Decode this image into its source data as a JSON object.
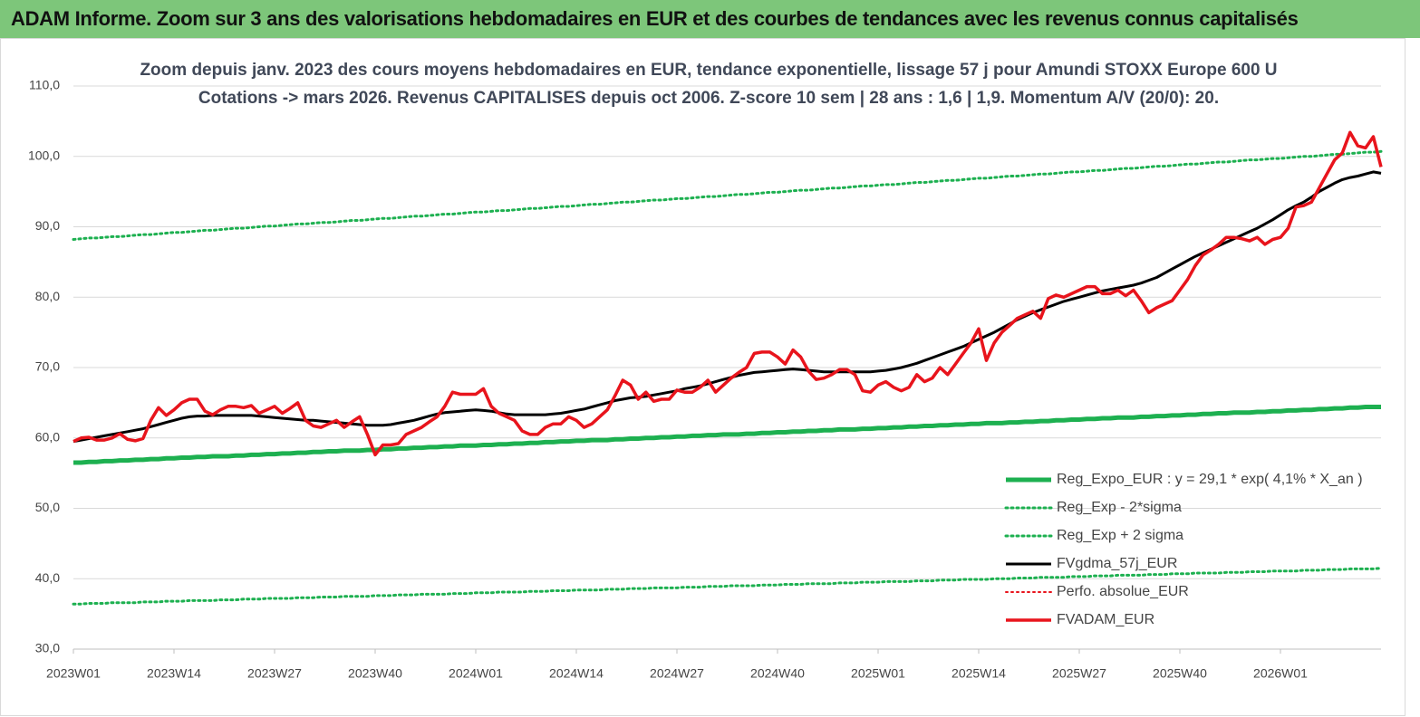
{
  "header": {
    "title": "ADAM Informe. Zoom sur 3 ans des valorisations hebdomadaires en EUR et des courbes de tendances avec les revenus connus capitalisés"
  },
  "chart_data": {
    "type": "line",
    "title": "Zoom depuis janv. 2023 des cours moyens hebdomadaires en EUR, tendance exponentielle, lissage 57 j pour Amundi STOXX Europe 600 U",
    "subtitle": "Cotations -> mars 2026. Revenus CAPITALISES depuis oct 2006. Z-score 10 sem | 28 ans : 1,6 | 1,9. Momentum A/V (20/0): 20.",
    "categories": [
      "2023W01",
      null,
      null,
      null,
      null,
      null,
      null,
      null,
      null,
      null,
      null,
      null,
      null,
      "2023W14",
      null,
      null,
      null,
      null,
      null,
      null,
      null,
      null,
      null,
      null,
      null,
      null,
      "2023W27",
      null,
      null,
      null,
      null,
      null,
      null,
      null,
      null,
      null,
      null,
      null,
      null,
      "2023W40",
      null,
      null,
      null,
      null,
      null,
      null,
      null,
      null,
      null,
      null,
      null,
      null,
      "2024W01",
      null,
      null,
      null,
      null,
      null,
      null,
      null,
      null,
      null,
      null,
      null,
      null,
      "2024W14",
      null,
      null,
      null,
      null,
      null,
      null,
      null,
      null,
      null,
      null,
      null,
      null,
      "2024W27",
      null,
      null,
      null,
      null,
      null,
      null,
      null,
      null,
      null,
      null,
      null,
      null,
      "2024W40",
      null,
      null,
      null,
      null,
      null,
      null,
      null,
      null,
      null,
      null,
      null,
      null,
      "2025W01",
      null,
      null,
      null,
      null,
      null,
      null,
      null,
      null,
      null,
      null,
      null,
      null,
      "2025W14",
      null,
      null,
      null,
      null,
      null,
      null,
      null,
      null,
      null,
      null,
      null,
      null,
      "2025W27",
      null,
      null,
      null,
      null,
      null,
      null,
      null,
      null,
      null,
      null,
      null,
      null,
      "2025W40",
      null,
      null,
      null,
      null,
      null,
      null,
      null,
      null,
      null,
      null,
      null,
      null,
      "2026W01",
      null,
      null,
      null,
      null,
      null,
      null,
      null,
      null,
      null,
      null,
      null,
      null,
      null
    ],
    "ylim": [
      30,
      110
    ],
    "yticks": [
      {
        "value": 30,
        "label": "30,0"
      },
      {
        "value": 40,
        "label": "40,0"
      },
      {
        "value": 50,
        "label": "50,0"
      },
      {
        "value": 60,
        "label": "60,0"
      },
      {
        "value": 70,
        "label": "70,0"
      },
      {
        "value": 80,
        "label": "80,0"
      },
      {
        "value": 90,
        "label": "90,0"
      },
      {
        "value": 100,
        "label": "100,0"
      },
      {
        "value": 110,
        "label": "110,0"
      }
    ],
    "grid": true,
    "legend": "lower right",
    "series": [
      {
        "name": "Reg_Expo_EUR : y = 29,1 * exp( 4,1% *  X_an )",
        "color": "#1db050",
        "style": "solid",
        "width": 5,
        "values": [
          56.5,
          56.5,
          56.6,
          56.6,
          56.7,
          56.7,
          56.8,
          56.8,
          56.9,
          56.9,
          57.0,
          57.0,
          57.1,
          57.1,
          57.2,
          57.2,
          57.3,
          57.3,
          57.4,
          57.4,
          57.4,
          57.5,
          57.5,
          57.6,
          57.6,
          57.7,
          57.7,
          57.8,
          57.8,
          57.9,
          57.9,
          58.0,
          58.0,
          58.1,
          58.1,
          58.2,
          58.2,
          58.2,
          58.3,
          58.3,
          58.4,
          58.4,
          58.5,
          58.5,
          58.6,
          58.6,
          58.7,
          58.7,
          58.8,
          58.8,
          58.9,
          58.9,
          58.9,
          59.0,
          59.0,
          59.1,
          59.1,
          59.2,
          59.2,
          59.3,
          59.3,
          59.4,
          59.4,
          59.5,
          59.5,
          59.6,
          59.6,
          59.7,
          59.7,
          59.7,
          59.8,
          59.8,
          59.9,
          59.9,
          60.0,
          60.0,
          60.1,
          60.1,
          60.2,
          60.2,
          60.3,
          60.3,
          60.4,
          60.4,
          60.5,
          60.5,
          60.5,
          60.6,
          60.6,
          60.7,
          60.7,
          60.8,
          60.8,
          60.9,
          60.9,
          61.0,
          61.0,
          61.1,
          61.1,
          61.2,
          61.2,
          61.2,
          61.3,
          61.3,
          61.4,
          61.4,
          61.5,
          61.5,
          61.6,
          61.6,
          61.7,
          61.7,
          61.8,
          61.8,
          61.9,
          61.9,
          62.0,
          62.0,
          62.1,
          62.1,
          62.1,
          62.2,
          62.2,
          62.3,
          62.3,
          62.4,
          62.4,
          62.5,
          62.5,
          62.6,
          62.6,
          62.7,
          62.7,
          62.8,
          62.8,
          62.9,
          62.9,
          62.9,
          63.0,
          63.0,
          63.1,
          63.1,
          63.2,
          63.2,
          63.3,
          63.3,
          63.4,
          63.4,
          63.5,
          63.5,
          63.6,
          63.6,
          63.6,
          63.7,
          63.7,
          63.8,
          63.8,
          63.9,
          63.9,
          64.0,
          64.0,
          64.1,
          64.1,
          64.2,
          64.2,
          64.3,
          64.3,
          64.4,
          64.4,
          64.4
        ]
      },
      {
        "name": "Reg_Exp - 2*sigma",
        "color": "#1db050",
        "style": "dotted",
        "width": 3,
        "values": [
          36.4,
          36.4,
          36.5,
          36.5,
          36.5,
          36.6,
          36.6,
          36.6,
          36.6,
          36.7,
          36.7,
          36.7,
          36.8,
          36.8,
          36.8,
          36.9,
          36.9,
          36.9,
          36.9,
          37.0,
          37.0,
          37.0,
          37.1,
          37.1,
          37.1,
          37.2,
          37.2,
          37.2,
          37.2,
          37.3,
          37.3,
          37.3,
          37.4,
          37.4,
          37.4,
          37.5,
          37.5,
          37.5,
          37.5,
          37.6,
          37.6,
          37.6,
          37.7,
          37.7,
          37.7,
          37.8,
          37.8,
          37.8,
          37.8,
          37.9,
          37.9,
          37.9,
          38.0,
          38.0,
          38.0,
          38.1,
          38.1,
          38.1,
          38.1,
          38.2,
          38.2,
          38.2,
          38.3,
          38.3,
          38.3,
          38.4,
          38.4,
          38.4,
          38.4,
          38.5,
          38.5,
          38.5,
          38.6,
          38.6,
          38.6,
          38.7,
          38.7,
          38.7,
          38.7,
          38.8,
          38.8,
          38.8,
          38.9,
          38.9,
          38.9,
          39.0,
          39.0,
          39.0,
          39.0,
          39.1,
          39.1,
          39.1,
          39.2,
          39.2,
          39.2,
          39.3,
          39.3,
          39.3,
          39.3,
          39.4,
          39.4,
          39.4,
          39.5,
          39.5,
          39.5,
          39.6,
          39.6,
          39.6,
          39.6,
          39.7,
          39.7,
          39.7,
          39.8,
          39.8,
          39.8,
          39.9,
          39.9,
          39.9,
          39.9,
          40.0,
          40.0,
          40.0,
          40.1,
          40.1,
          40.1,
          40.2,
          40.2,
          40.2,
          40.2,
          40.3,
          40.3,
          40.3,
          40.4,
          40.4,
          40.4,
          40.5,
          40.5,
          40.5,
          40.5,
          40.6,
          40.6,
          40.6,
          40.7,
          40.7,
          40.7,
          40.8,
          40.8,
          40.8,
          40.8,
          40.9,
          40.9,
          40.9,
          41.0,
          41.0,
          41.0,
          41.1,
          41.1,
          41.1,
          41.1,
          41.2,
          41.2,
          41.2,
          41.3,
          41.3,
          41.3,
          41.4,
          41.4,
          41.4,
          41.4,
          41.5
        ]
      },
      {
        "name": "Reg_Exp + 2 sigma",
        "color": "#1db050",
        "style": "dotted",
        "width": 3,
        "values": [
          88.2,
          88.3,
          88.4,
          88.4,
          88.5,
          88.6,
          88.6,
          88.7,
          88.8,
          88.9,
          88.9,
          89.0,
          89.1,
          89.2,
          89.2,
          89.3,
          89.4,
          89.5,
          89.5,
          89.6,
          89.7,
          89.8,
          89.8,
          89.9,
          90.0,
          90.1,
          90.1,
          90.2,
          90.3,
          90.4,
          90.4,
          90.5,
          90.6,
          90.6,
          90.7,
          90.8,
          90.9,
          90.9,
          91.0,
          91.1,
          91.2,
          91.2,
          91.3,
          91.4,
          91.5,
          91.5,
          91.6,
          91.7,
          91.8,
          91.8,
          91.9,
          92.0,
          92.1,
          92.1,
          92.2,
          92.3,
          92.3,
          92.4,
          92.5,
          92.6,
          92.6,
          92.7,
          92.8,
          92.9,
          92.9,
          93.0,
          93.1,
          93.2,
          93.2,
          93.3,
          93.4,
          93.5,
          93.5,
          93.6,
          93.7,
          93.8,
          93.8,
          93.9,
          94.0,
          94.0,
          94.1,
          94.2,
          94.3,
          94.3,
          94.4,
          94.5,
          94.6,
          94.6,
          94.7,
          94.8,
          94.9,
          94.9,
          95.0,
          95.1,
          95.2,
          95.2,
          95.3,
          95.4,
          95.5,
          95.5,
          95.6,
          95.7,
          95.8,
          95.8,
          95.9,
          96.0,
          96.0,
          96.1,
          96.2,
          96.3,
          96.3,
          96.4,
          96.5,
          96.6,
          96.6,
          96.7,
          96.8,
          96.9,
          96.9,
          97.0,
          97.1,
          97.2,
          97.2,
          97.3,
          97.4,
          97.5,
          97.5,
          97.6,
          97.7,
          97.8,
          97.8,
          97.9,
          98.0,
          98.0,
          98.1,
          98.2,
          98.3,
          98.3,
          98.4,
          98.5,
          98.6,
          98.6,
          98.7,
          98.8,
          98.9,
          98.9,
          99.0,
          99.1,
          99.2,
          99.2,
          99.3,
          99.4,
          99.5,
          99.5,
          99.6,
          99.7,
          99.7,
          99.8,
          99.9,
          100.0,
          100.0,
          100.1,
          100.2,
          100.3,
          100.3,
          100.4,
          100.5,
          100.6,
          100.6,
          100.7
        ]
      },
      {
        "name": "FVgdma_57j_EUR",
        "color": "#000000",
        "style": "solid",
        "width": 3,
        "values": [
          59.5,
          59.7,
          59.9,
          60.1,
          60.3,
          60.5,
          60.7,
          60.9,
          61.1,
          61.3,
          61.6,
          61.9,
          62.2,
          62.5,
          62.8,
          63,
          63.1,
          63.1,
          63.2,
          63.2,
          63.2,
          63.2,
          63.2,
          63.2,
          63.1,
          63,
          62.9,
          62.8,
          62.7,
          62.6,
          62.5,
          62.5,
          62.4,
          62.3,
          62.2,
          62.1,
          62,
          61.9,
          61.8,
          61.8,
          61.8,
          61.9,
          62.1,
          62.3,
          62.5,
          62.8,
          63.1,
          63.4,
          63.6,
          63.7,
          63.8,
          63.9,
          64,
          63.9,
          63.8,
          63.6,
          63.4,
          63.3,
          63.3,
          63.3,
          63.3,
          63.3,
          63.4,
          63.5,
          63.7,
          63.9,
          64.1,
          64.4,
          64.7,
          65,
          65.3,
          65.5,
          65.7,
          65.8,
          65.9,
          66.1,
          66.3,
          66.5,
          66.7,
          67,
          67.2,
          67.4,
          67.7,
          68,
          68.3,
          68.6,
          68.9,
          69.1,
          69.3,
          69.4,
          69.5,
          69.6,
          69.7,
          69.8,
          69.7,
          69.6,
          69.5,
          69.4,
          69.4,
          69.4,
          69.4,
          69.4,
          69.4,
          69.4,
          69.5,
          69.6,
          69.8,
          70,
          70.3,
          70.6,
          71,
          71.4,
          71.8,
          72.2,
          72.6,
          73,
          73.5,
          74,
          74.5,
          75,
          75.6,
          76.2,
          76.8,
          77.3,
          77.8,
          78.2,
          78.6,
          79,
          79.4,
          79.7,
          80,
          80.3,
          80.6,
          80.9,
          81.1,
          81.3,
          81.5,
          81.7,
          82,
          82.4,
          82.8,
          83.4,
          84,
          84.6,
          85.2,
          85.8,
          86.3,
          86.8,
          87.3,
          87.8,
          88.3,
          88.8,
          89.3,
          89.8,
          90.4,
          91,
          91.7,
          92.4,
          93,
          93.5,
          94.2,
          95,
          95.6,
          96.2,
          96.7,
          97,
          97.2,
          97.5,
          97.8,
          97.6
        ]
      },
      {
        "name": "Perfo. absolue_EUR",
        "color": "#e8141c",
        "style": "dotted",
        "width": 2
      },
      {
        "name": "FVADAM_EUR",
        "color": "#e8141c",
        "style": "solid",
        "width": 3.5,
        "values": [
          59.5,
          60,
          60.1,
          59.7,
          59.7,
          60,
          60.6,
          59.8,
          59.6,
          59.9,
          62.5,
          64.3,
          63.2,
          64,
          65,
          65.5,
          65.5,
          63.8,
          63.3,
          64,
          64.5,
          64.5,
          64.3,
          64.6,
          63.5,
          64,
          64.5,
          63.5,
          64.2,
          65,
          62.5,
          61.7,
          61.5,
          62,
          62.5,
          61.5,
          62.3,
          63,
          60.5,
          57.6,
          59,
          59,
          59.2,
          60.5,
          61,
          61.5,
          62.3,
          63,
          64.5,
          66.5,
          66.2,
          66.2,
          66.2,
          67,
          64.5,
          63.5,
          63,
          62.5,
          61,
          60.5,
          60.5,
          61.5,
          62,
          62,
          63,
          62.5,
          61.5,
          62,
          63,
          64,
          66,
          68.2,
          67.5,
          65.5,
          66.5,
          65.2,
          65.5,
          65.5,
          66.8,
          66.5,
          66.5,
          67.2,
          68.2,
          66.5,
          67.5,
          68.5,
          69.3,
          70,
          72,
          72.2,
          72.2,
          71.5,
          70.5,
          72.5,
          71.5,
          69.5,
          68.3,
          68.5,
          69,
          69.7,
          69.7,
          69,
          66.7,
          66.5,
          67.5,
          68,
          67.2,
          66.7,
          67.2,
          69,
          68,
          68.5,
          70,
          69,
          70.5,
          72,
          73.5,
          75.5,
          71,
          73.5,
          75,
          76,
          77,
          77.5,
          78,
          77,
          79.8,
          80.3,
          80,
          80.5,
          81,
          81.5,
          81.5,
          80.5,
          80.5,
          81,
          80.2,
          81,
          79.5,
          77.8,
          78.5,
          79,
          79.5,
          81,
          82.5,
          84.5,
          86,
          86.7,
          87.5,
          88.5,
          88.5,
          88.3,
          88,
          88.5,
          87.5,
          88.2,
          88.5,
          89.8,
          92.8,
          93,
          93.5,
          95.5,
          97.5,
          99.5,
          100.5,
          103.4,
          101.5,
          101.2,
          102.8,
          98.5
        ]
      }
    ]
  }
}
